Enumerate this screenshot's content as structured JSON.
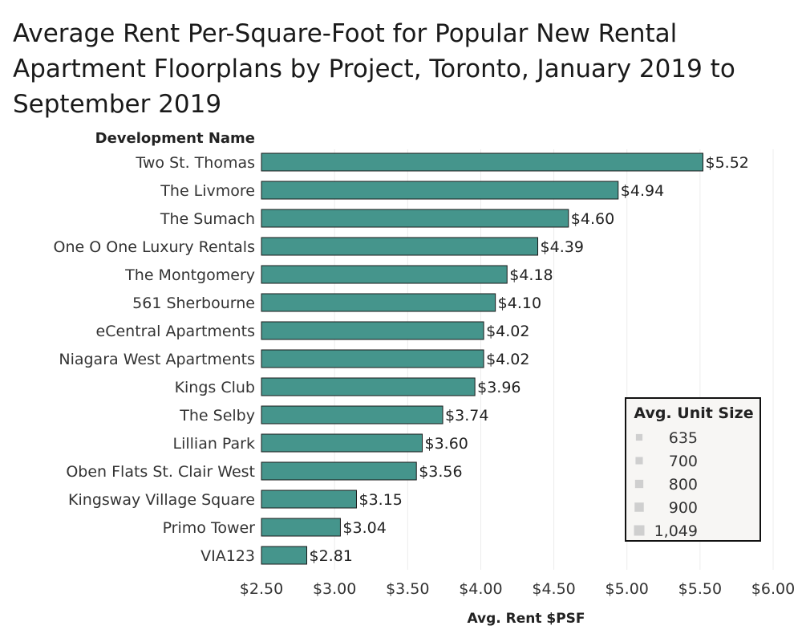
{
  "title": "Average Rent Per-Square-Foot for Popular New Rental Apartment Floorplans by Project, Toronto, January 2019 to September 2019",
  "colors": {
    "bar": "#45958c",
    "bar_stroke": "#1a1a1a",
    "grid": "#ececec",
    "legend_bg": "#f7f6f4",
    "legend_marker": "#cfcfcf"
  },
  "chart_data": {
    "type": "bar",
    "orientation": "horizontal",
    "row_header": "Development Name",
    "xlabel": "Avg. Rent $PSF",
    "xlim": [
      2.5,
      6.0
    ],
    "x_ticks": [
      {
        "value": 2.5,
        "label": "$2.50"
      },
      {
        "value": 3.0,
        "label": "$3.00"
      },
      {
        "value": 3.5,
        "label": "$3.50"
      },
      {
        "value": 4.0,
        "label": "$4.00"
      },
      {
        "value": 4.5,
        "label": "$4.50"
      },
      {
        "value": 5.0,
        "label": "$5.00"
      },
      {
        "value": 5.5,
        "label": "$5.50"
      },
      {
        "value": 6.0,
        "label": "$6.00"
      }
    ],
    "grid": true,
    "categories": [
      "Two St. Thomas",
      "The Livmore",
      "The Sumach",
      "One O One Luxury Rentals",
      "The Montgomery",
      "561 Sherbourne",
      "eCentral Apartments",
      "Niagara West Apartments",
      "Kings Club",
      "The Selby",
      "Lillian Park",
      "Oben Flats St. Clair West",
      "Kingsway Village Square",
      "Primo Tower",
      "VIA123"
    ],
    "values": [
      5.52,
      4.94,
      4.6,
      4.39,
      4.18,
      4.1,
      4.02,
      4.02,
      3.96,
      3.74,
      3.6,
      3.56,
      3.15,
      3.04,
      2.81
    ],
    "value_labels": [
      "$5.52",
      "$4.94",
      "$4.60",
      "$4.39",
      "$4.18",
      "$4.10",
      "$4.02",
      "$4.02",
      "$3.96",
      "$3.74",
      "$3.60",
      "$3.56",
      "$3.15",
      "$3.04",
      "$2.81"
    ],
    "legend": {
      "title": "Avg. Unit Size",
      "placement": "bottom-right",
      "items": [
        {
          "label": "635",
          "level": 0.2
        },
        {
          "label": "700",
          "level": 0.35
        },
        {
          "label": "800",
          "level": 0.55
        },
        {
          "label": "900",
          "level": 0.75
        },
        {
          "label": "1,049",
          "level": 1.0
        }
      ]
    }
  }
}
